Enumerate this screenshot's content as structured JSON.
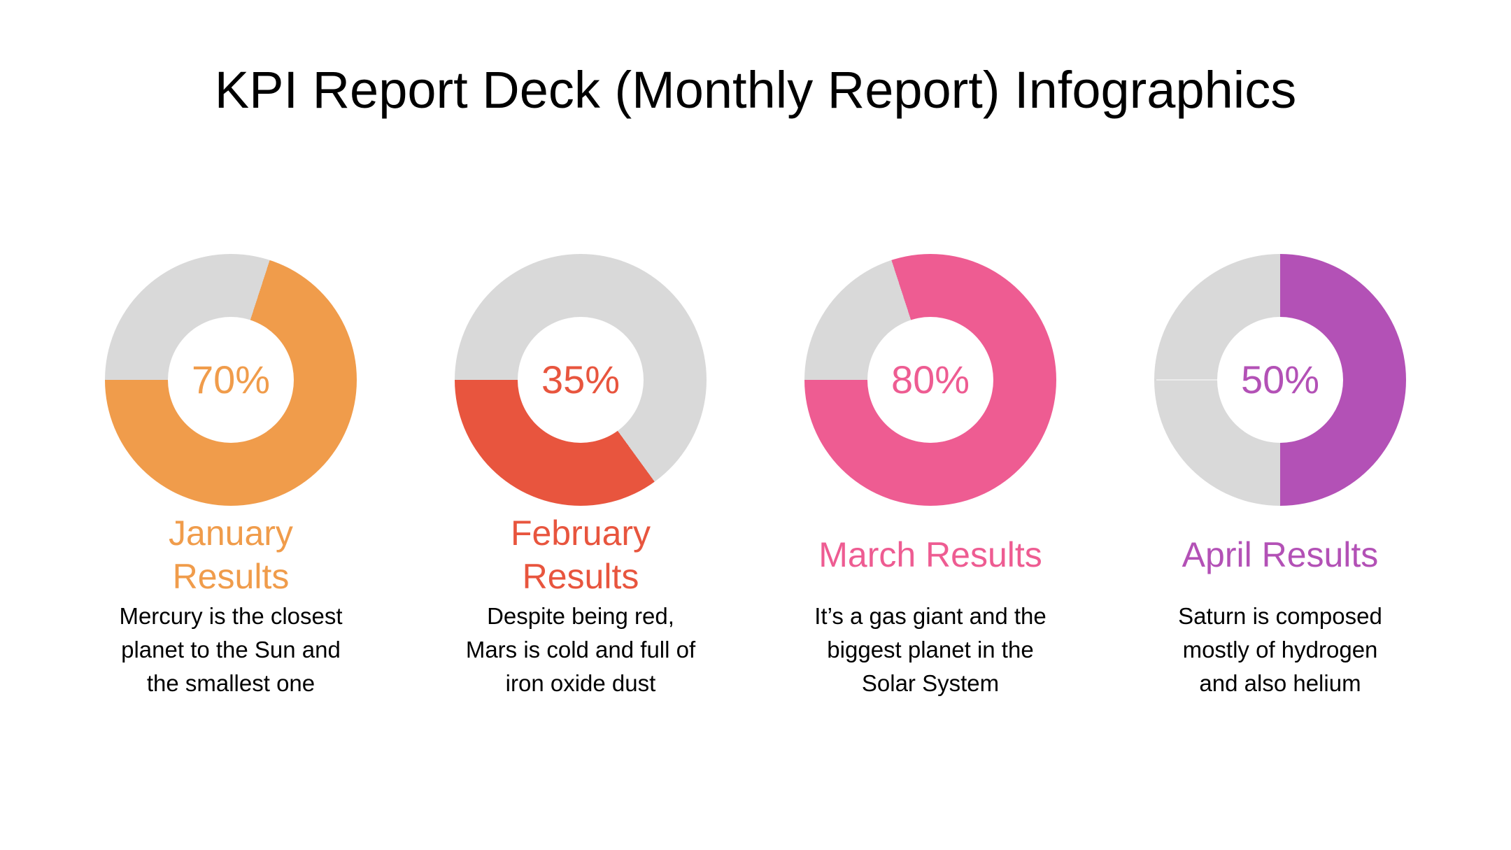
{
  "page": {
    "background": "#FFFFFF",
    "title": "KPI Report Deck (Monthly Report) Infographics",
    "title_color": "#000000"
  },
  "chart_data": {
    "type": "pie",
    "subtype": "donut-progress",
    "title": "KPI Report Deck (Monthly Report) Infographics",
    "track_color": "#D9D9D9",
    "hole_ratio": 0.5,
    "charts": [
      {
        "label": "January Results",
        "label_display": "January\nResults",
        "percent": 70,
        "percent_label": "70%",
        "color": "#F09C4B",
        "track_color": "#D9D9D9",
        "start_angle_deg": 18,
        "track_seam": false,
        "description": "Mercury is the closest\nplanet to the Sun and\nthe smallest one"
      },
      {
        "label": "February Results",
        "label_display": "February\nResults",
        "percent": 35,
        "percent_label": "35%",
        "color": "#E8553E",
        "track_color": "#D9D9D9",
        "start_angle_deg": 144,
        "track_seam": false,
        "description": "Despite being red,\nMars is cold and full of\niron oxide dust"
      },
      {
        "label": "March Results",
        "label_display": "March Results",
        "percent": 80,
        "percent_label": "80%",
        "color": "#EE5C92",
        "track_color": "#D9D9D9",
        "start_angle_deg": 342,
        "track_seam": false,
        "description": "It’s a gas giant and the\nbiggest planet in the\nSolar System"
      },
      {
        "label": "April Results",
        "label_display": "April Results",
        "percent": 50,
        "percent_label": "50%",
        "color": "#B351B6",
        "track_color": "#D9D9D9",
        "start_angle_deg": 0,
        "track_seam": true,
        "description": "Saturn is composed\nmostly of hydrogen\nand also helium"
      }
    ]
  }
}
